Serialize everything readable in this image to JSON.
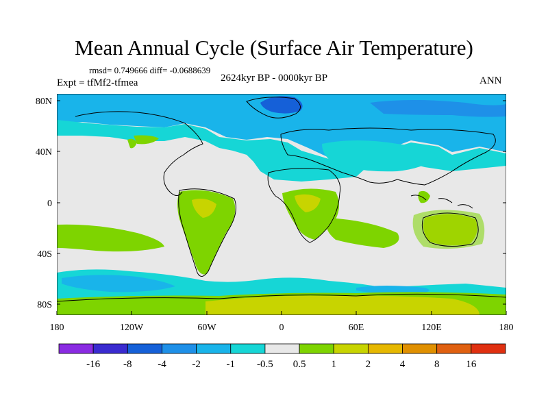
{
  "title": "Mean Annual Cycle (Surface Air Temperature)",
  "stats": "rmsd= 0.749666  diff= -0.0688639",
  "experiment": "Expt = tfMf2-tfmea",
  "period": "2624kyr BP - 0000kyr BP",
  "season": "ANN",
  "map": {
    "projection": "cylindrical equidistant",
    "lat_ticks": [
      "80N",
      "40N",
      "0",
      "40S",
      "80S"
    ],
    "lon_ticks": [
      "180",
      "120W",
      "60W",
      "0",
      "60E",
      "120E",
      "180"
    ],
    "background_color": "#e8e8e8"
  },
  "colorbar": {
    "colors": [
      "#8a2be2",
      "#3a2bd0",
      "#1560d8",
      "#1e90e8",
      "#19b4ea",
      "#16d6d6",
      "#e8e8e8",
      "#7ed400",
      "#c8d400",
      "#e6b800",
      "#e09000",
      "#e06010",
      "#e03010"
    ],
    "labels": [
      "-16",
      "-8",
      "-4",
      "-2",
      "-1",
      "-0.5",
      "0.5",
      "1",
      "2",
      "4",
      "8",
      "16"
    ]
  }
}
